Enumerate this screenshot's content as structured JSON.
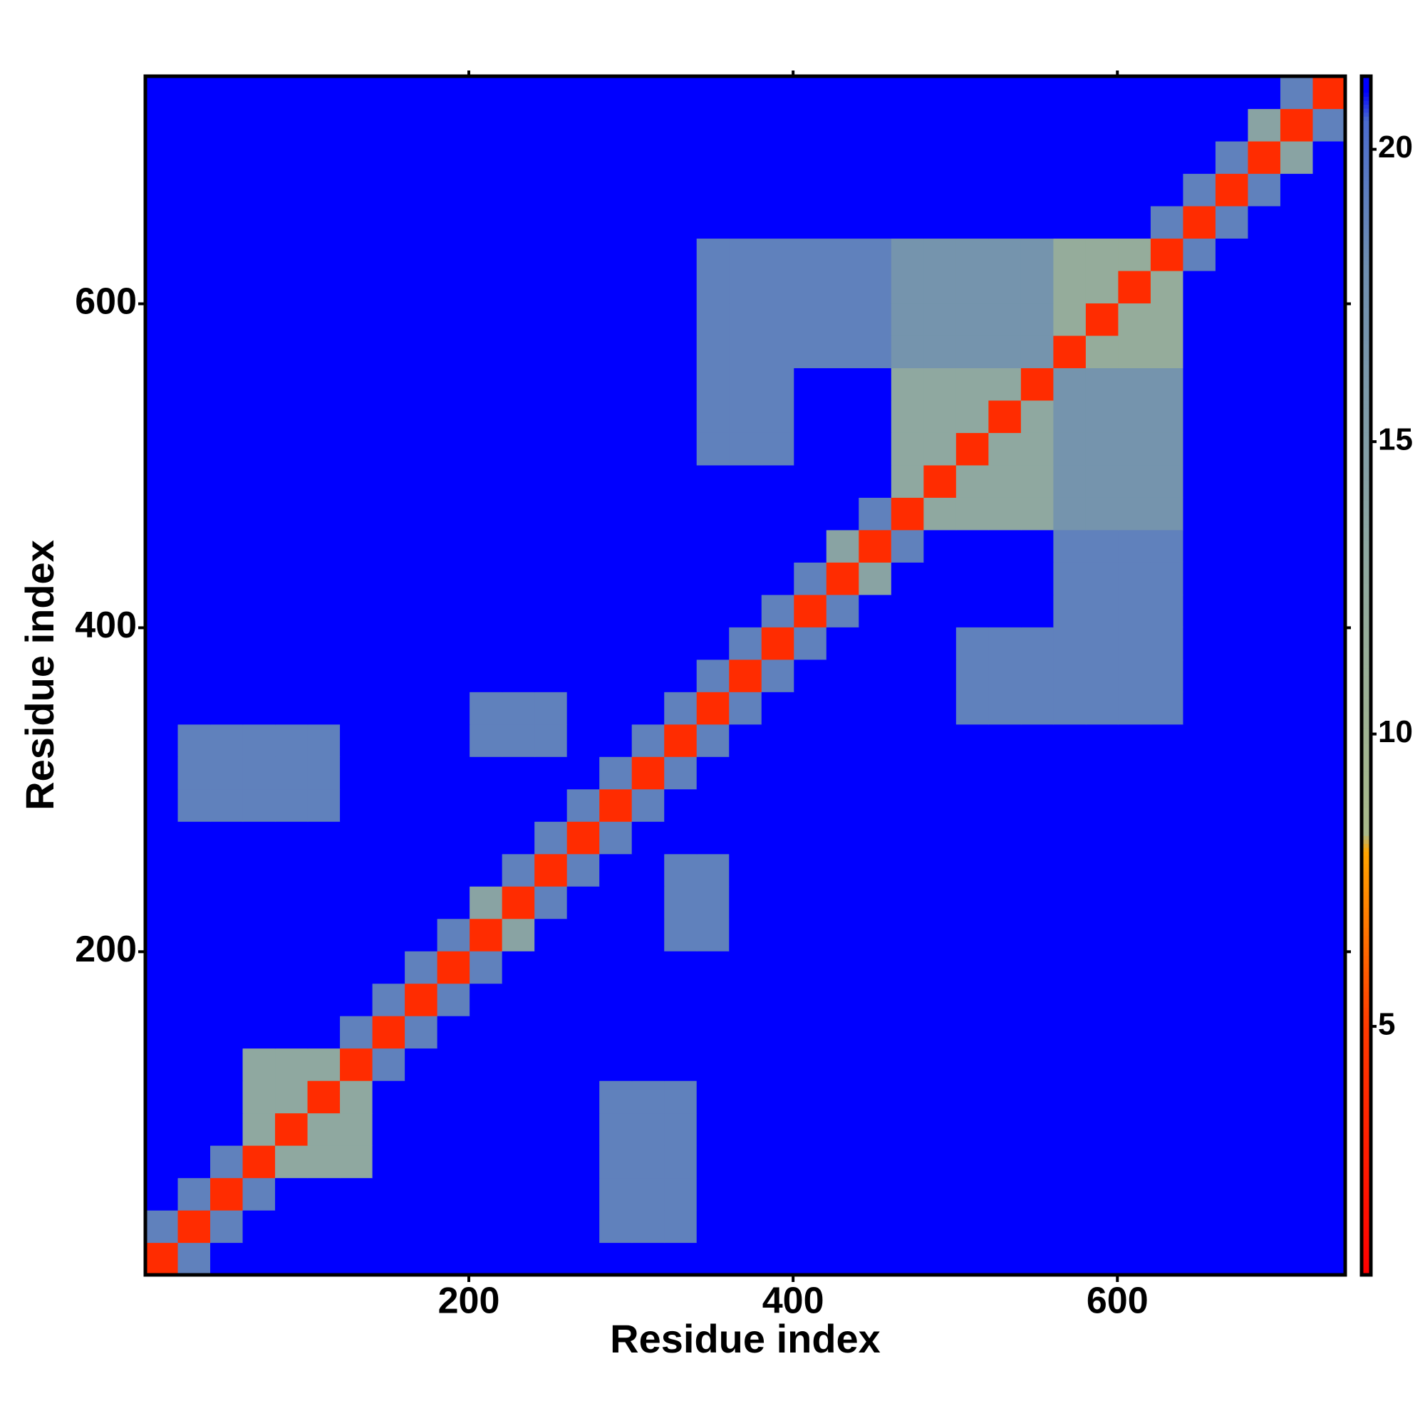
{
  "chart_data": {
    "type": "heatmap",
    "xlabel": "Residue index",
    "ylabel": "Residue index",
    "xlim": [
      0.5,
      740.5
    ],
    "ylim": [
      0.5,
      740.5
    ],
    "xticks": [
      200,
      400,
      600
    ],
    "yticks": [
      200,
      400,
      600
    ],
    "zlim": [
      0.75,
      21.25
    ],
    "colorbar_ticks": [
      5,
      10,
      15,
      20
    ],
    "colorscale": [
      [
        0.75,
        "#ff0000"
      ],
      [
        5,
        "#ff3a00"
      ],
      [
        8,
        "#ffa500"
      ],
      [
        8.3,
        "#a9b98a"
      ],
      [
        13,
        "#8fa8a0"
      ],
      [
        18,
        "#6f8fb0"
      ],
      [
        20.5,
        "#4a6ccf"
      ],
      [
        21,
        "#0000ff"
      ],
      [
        21.25,
        "#0000ff"
      ]
    ],
    "xbins": [
      0.5,
      20.5,
      40.5,
      60.5,
      80.5,
      100.5,
      120.5,
      140.5,
      160.5,
      180.5,
      200.5,
      220.5,
      240.5,
      260.5,
      280.5,
      300.5,
      320.5,
      340.5,
      360.5,
      380.5,
      400.5,
      420.5,
      440.5,
      460.5,
      480.5,
      500.5,
      520.5,
      540.5,
      560.5,
      580.5,
      600.5,
      620.5,
      640.5,
      660.5,
      680.5,
      700.5,
      720.5,
      740.5
    ],
    "ybins": [
      0.5,
      20.5,
      40.5,
      60.5,
      80.5,
      100.5,
      120.5,
      140.5,
      160.5,
      180.5,
      200.5,
      220.5,
      240.5,
      260.5,
      280.5,
      300.5,
      320.5,
      340.5,
      360.5,
      380.5,
      400.5,
      420.5,
      440.5,
      460.5,
      480.5,
      500.5,
      520.5,
      540.5,
      560.5,
      580.5,
      600.5,
      620.5,
      640.5,
      660.5,
      680.5,
      700.5,
      720.5,
      740.5
    ],
    "values": [
      [
        4,
        19,
        21,
        21,
        21,
        21,
        21,
        21,
        21,
        21,
        21,
        21,
        21,
        21,
        21,
        21,
        21,
        21,
        21,
        21,
        21,
        21,
        21,
        21,
        21,
        21,
        21,
        21,
        21,
        21,
        21,
        21,
        21,
        21,
        21,
        21,
        21
      ],
      [
        19,
        4,
        19,
        21,
        21,
        21,
        21,
        21,
        21,
        21,
        21,
        21,
        21,
        21,
        19,
        19,
        19,
        21,
        21,
        21,
        21,
        21,
        21,
        21,
        21,
        21,
        21,
        21,
        21,
        21,
        21,
        21,
        21,
        21,
        21,
        21,
        21
      ],
      [
        21,
        19,
        4,
        19,
        21,
        21,
        21,
        21,
        21,
        21,
        21,
        21,
        21,
        21,
        19,
        19,
        19,
        21,
        21,
        21,
        21,
        21,
        21,
        21,
        21,
        21,
        21,
        21,
        21,
        21,
        21,
        21,
        21,
        21,
        21,
        21,
        21
      ],
      [
        21,
        21,
        19,
        4,
        13,
        13,
        13,
        21,
        21,
        21,
        21,
        21,
        21,
        21,
        19,
        19,
        19,
        21,
        21,
        21,
        21,
        21,
        21,
        21,
        21,
        21,
        21,
        21,
        21,
        21,
        21,
        21,
        21,
        21,
        21,
        21,
        21
      ],
      [
        21,
        21,
        21,
        13,
        4,
        13,
        13,
        21,
        21,
        21,
        21,
        21,
        21,
        21,
        19,
        19,
        19,
        21,
        21,
        21,
        21,
        21,
        21,
        21,
        21,
        21,
        21,
        21,
        21,
        21,
        21,
        21,
        21,
        21,
        21,
        21,
        21
      ],
      [
        21,
        21,
        21,
        13,
        13,
        4,
        13,
        21,
        21,
        21,
        21,
        21,
        21,
        21,
        19,
        19,
        19,
        21,
        21,
        21,
        21,
        21,
        21,
        21,
        21,
        21,
        21,
        21,
        21,
        21,
        21,
        21,
        21,
        21,
        21,
        21,
        21
      ],
      [
        21,
        21,
        21,
        13,
        13,
        13,
        4,
        19,
        21,
        21,
        21,
        21,
        21,
        21,
        21,
        21,
        21,
        21,
        21,
        21,
        21,
        21,
        21,
        21,
        21,
        21,
        21,
        21,
        21,
        21,
        21,
        21,
        21,
        21,
        21,
        21,
        21
      ],
      [
        21,
        21,
        21,
        21,
        21,
        21,
        19,
        4,
        19,
        21,
        21,
        21,
        21,
        21,
        21,
        21,
        21,
        21,
        21,
        21,
        21,
        21,
        21,
        21,
        21,
        21,
        21,
        21,
        21,
        21,
        21,
        21,
        21,
        21,
        21,
        21,
        21
      ],
      [
        21,
        21,
        21,
        21,
        21,
        21,
        21,
        19,
        4,
        19,
        21,
        21,
        21,
        21,
        21,
        21,
        21,
        21,
        21,
        21,
        21,
        21,
        21,
        21,
        21,
        21,
        21,
        21,
        21,
        21,
        21,
        21,
        21,
        21,
        21,
        21,
        21
      ],
      [
        21,
        21,
        21,
        21,
        21,
        21,
        21,
        21,
        19,
        4,
        19,
        21,
        21,
        21,
        21,
        21,
        21,
        21,
        21,
        21,
        21,
        21,
        21,
        21,
        21,
        21,
        21,
        21,
        21,
        21,
        21,
        21,
        21,
        21,
        21,
        21,
        21
      ],
      [
        21,
        21,
        21,
        21,
        21,
        21,
        21,
        21,
        21,
        19,
        4,
        14,
        21,
        21,
        21,
        21,
        19,
        19,
        21,
        21,
        21,
        21,
        21,
        21,
        21,
        21,
        21,
        21,
        21,
        21,
        21,
        21,
        21,
        21,
        21,
        21,
        21
      ],
      [
        21,
        21,
        21,
        21,
        21,
        21,
        21,
        21,
        21,
        21,
        14,
        4,
        19,
        21,
        21,
        21,
        19,
        19,
        21,
        21,
        21,
        21,
        21,
        21,
        21,
        21,
        21,
        21,
        21,
        21,
        21,
        21,
        21,
        21,
        21,
        21,
        21
      ],
      [
        21,
        21,
        21,
        21,
        21,
        21,
        21,
        21,
        21,
        21,
        21,
        19,
        4,
        19,
        21,
        21,
        19,
        19,
        21,
        21,
        21,
        21,
        21,
        21,
        21,
        21,
        21,
        21,
        21,
        21,
        21,
        21,
        21,
        21,
        21,
        21,
        21
      ],
      [
        21,
        21,
        21,
        21,
        21,
        21,
        21,
        21,
        21,
        21,
        21,
        21,
        19,
        4,
        19,
        21,
        21,
        21,
        21,
        21,
        21,
        21,
        21,
        21,
        21,
        21,
        21,
        21,
        21,
        21,
        21,
        21,
        21,
        21,
        21,
        21,
        21
      ],
      [
        21,
        19,
        19,
        19,
        19,
        19,
        21,
        21,
        21,
        21,
        21,
        21,
        21,
        19,
        4,
        19,
        21,
        21,
        21,
        21,
        21,
        21,
        21,
        21,
        21,
        21,
        21,
        21,
        21,
        21,
        21,
        21,
        21,
        21,
        21,
        21,
        21
      ],
      [
        21,
        19,
        19,
        19,
        19,
        19,
        21,
        21,
        21,
        21,
        21,
        21,
        21,
        21,
        19,
        4,
        19,
        21,
        21,
        21,
        21,
        21,
        21,
        21,
        21,
        21,
        21,
        21,
        21,
        21,
        21,
        21,
        21,
        21,
        21,
        21,
        21
      ],
      [
        21,
        19,
        19,
        19,
        19,
        19,
        21,
        21,
        21,
        21,
        19,
        19,
        19,
        21,
        21,
        19,
        4,
        19,
        21,
        21,
        21,
        21,
        21,
        21,
        21,
        21,
        21,
        21,
        21,
        21,
        21,
        21,
        21,
        21,
        21,
        21,
        21
      ],
      [
        21,
        21,
        21,
        21,
        21,
        21,
        21,
        21,
        21,
        21,
        19,
        19,
        19,
        21,
        21,
        21,
        19,
        4,
        19,
        21,
        21,
        21,
        21,
        21,
        21,
        19,
        19,
        19,
        19,
        19,
        19,
        19,
        21,
        21,
        21,
        21,
        21
      ],
      [
        21,
        21,
        21,
        21,
        21,
        21,
        21,
        21,
        21,
        21,
        21,
        21,
        21,
        21,
        21,
        21,
        21,
        19,
        4,
        19,
        21,
        21,
        21,
        21,
        21,
        19,
        19,
        19,
        19,
        19,
        19,
        19,
        21,
        21,
        21,
        21,
        21
      ],
      [
        21,
        21,
        21,
        21,
        21,
        21,
        21,
        21,
        21,
        21,
        21,
        21,
        21,
        21,
        21,
        21,
        21,
        21,
        19,
        4,
        19,
        21,
        21,
        21,
        21,
        19,
        19,
        19,
        19,
        19,
        19,
        19,
        21,
        21,
        21,
        21,
        21
      ],
      [
        21,
        21,
        21,
        21,
        21,
        21,
        21,
        21,
        21,
        21,
        21,
        21,
        21,
        21,
        21,
        21,
        21,
        21,
        21,
        19,
        4,
        19,
        21,
        21,
        21,
        21,
        21,
        21,
        19,
        19,
        19,
        19,
        21,
        21,
        21,
        21,
        21
      ],
      [
        21,
        21,
        21,
        21,
        21,
        21,
        21,
        21,
        21,
        21,
        21,
        21,
        21,
        21,
        21,
        21,
        21,
        21,
        21,
        21,
        19,
        4,
        14,
        21,
        21,
        21,
        21,
        21,
        19,
        19,
        19,
        19,
        21,
        21,
        21,
        21,
        21
      ],
      [
        21,
        21,
        21,
        21,
        21,
        21,
        21,
        21,
        21,
        21,
        21,
        21,
        21,
        21,
        21,
        21,
        21,
        21,
        21,
        21,
        21,
        14,
        4,
        19,
        21,
        21,
        21,
        21,
        19,
        19,
        19,
        19,
        21,
        21,
        21,
        21,
        21
      ],
      [
        21,
        21,
        21,
        21,
        21,
        21,
        21,
        21,
        21,
        21,
        21,
        21,
        21,
        21,
        21,
        21,
        21,
        21,
        21,
        21,
        21,
        21,
        19,
        4,
        13,
        13,
        13,
        13,
        17,
        17,
        17,
        17,
        21,
        21,
        21,
        21,
        21
      ],
      [
        21,
        21,
        21,
        21,
        21,
        21,
        21,
        21,
        21,
        21,
        21,
        21,
        21,
        21,
        21,
        21,
        21,
        21,
        21,
        21,
        21,
        21,
        21,
        13,
        4,
        13,
        13,
        13,
        17,
        17,
        17,
        17,
        21,
        21,
        21,
        21,
        21
      ],
      [
        21,
        21,
        21,
        21,
        21,
        21,
        21,
        21,
        21,
        21,
        21,
        21,
        21,
        21,
        21,
        21,
        21,
        19,
        19,
        19,
        21,
        21,
        21,
        13,
        13,
        4,
        13,
        13,
        17,
        17,
        17,
        17,
        21,
        21,
        21,
        21,
        21
      ],
      [
        21,
        21,
        21,
        21,
        21,
        21,
        21,
        21,
        21,
        21,
        21,
        21,
        21,
        21,
        21,
        21,
        21,
        19,
        19,
        19,
        21,
        21,
        21,
        13,
        13,
        13,
        4,
        13,
        17,
        17,
        17,
        17,
        21,
        21,
        21,
        21,
        21
      ],
      [
        21,
        21,
        21,
        21,
        21,
        21,
        21,
        21,
        21,
        21,
        21,
        21,
        21,
        21,
        21,
        21,
        21,
        19,
        19,
        19,
        21,
        21,
        21,
        13,
        13,
        13,
        13,
        4,
        17,
        17,
        17,
        17,
        21,
        21,
        21,
        21,
        21
      ],
      [
        21,
        21,
        21,
        21,
        21,
        21,
        21,
        21,
        21,
        21,
        21,
        21,
        21,
        21,
        21,
        21,
        21,
        19,
        19,
        19,
        19,
        19,
        19,
        17,
        17,
        17,
        17,
        17,
        4,
        12,
        12,
        12,
        21,
        21,
        21,
        21,
        21
      ],
      [
        21,
        21,
        21,
        21,
        21,
        21,
        21,
        21,
        21,
        21,
        21,
        21,
        21,
        21,
        21,
        21,
        21,
        19,
        19,
        19,
        19,
        19,
        19,
        17,
        17,
        17,
        17,
        17,
        12,
        4,
        12,
        12,
        21,
        21,
        21,
        21,
        21
      ],
      [
        21,
        21,
        21,
        21,
        21,
        21,
        21,
        21,
        21,
        21,
        21,
        21,
        21,
        21,
        21,
        21,
        21,
        19,
        19,
        19,
        19,
        19,
        19,
        17,
        17,
        17,
        17,
        17,
        12,
        12,
        4,
        12,
        21,
        21,
        21,
        21,
        21
      ],
      [
        21,
        21,
        21,
        21,
        21,
        21,
        21,
        21,
        21,
        21,
        21,
        21,
        21,
        21,
        21,
        21,
        21,
        19,
        19,
        19,
        19,
        19,
        19,
        17,
        17,
        17,
        17,
        17,
        12,
        12,
        12,
        4,
        19,
        21,
        21,
        21,
        21
      ],
      [
        21,
        21,
        21,
        21,
        21,
        21,
        21,
        21,
        21,
        21,
        21,
        21,
        21,
        21,
        21,
        21,
        21,
        21,
        21,
        21,
        21,
        21,
        21,
        21,
        21,
        21,
        21,
        21,
        21,
        21,
        21,
        19,
        4,
        19,
        21,
        21,
        21
      ],
      [
        21,
        21,
        21,
        21,
        21,
        21,
        21,
        21,
        21,
        21,
        21,
        21,
        21,
        21,
        21,
        21,
        21,
        21,
        21,
        21,
        21,
        21,
        21,
        21,
        21,
        21,
        21,
        21,
        21,
        21,
        21,
        21,
        19,
        4,
        19,
        21,
        21
      ],
      [
        21,
        21,
        21,
        21,
        21,
        21,
        21,
        21,
        21,
        21,
        21,
        21,
        21,
        21,
        21,
        21,
        21,
        21,
        21,
        21,
        21,
        21,
        21,
        21,
        21,
        21,
        21,
        21,
        21,
        21,
        21,
        21,
        21,
        19,
        4,
        14,
        21
      ],
      [
        21,
        21,
        21,
        21,
        21,
        21,
        21,
        21,
        21,
        21,
        21,
        21,
        21,
        21,
        21,
        21,
        21,
        21,
        21,
        21,
        21,
        21,
        21,
        21,
        21,
        21,
        21,
        21,
        21,
        21,
        21,
        21,
        21,
        21,
        14,
        4,
        19
      ],
      [
        21,
        21,
        21,
        21,
        21,
        21,
        21,
        21,
        21,
        21,
        21,
        21,
        21,
        21,
        21,
        21,
        21,
        21,
        21,
        21,
        21,
        21,
        21,
        21,
        21,
        21,
        21,
        21,
        21,
        21,
        21,
        21,
        21,
        21,
        21,
        19,
        4
      ]
    ]
  }
}
